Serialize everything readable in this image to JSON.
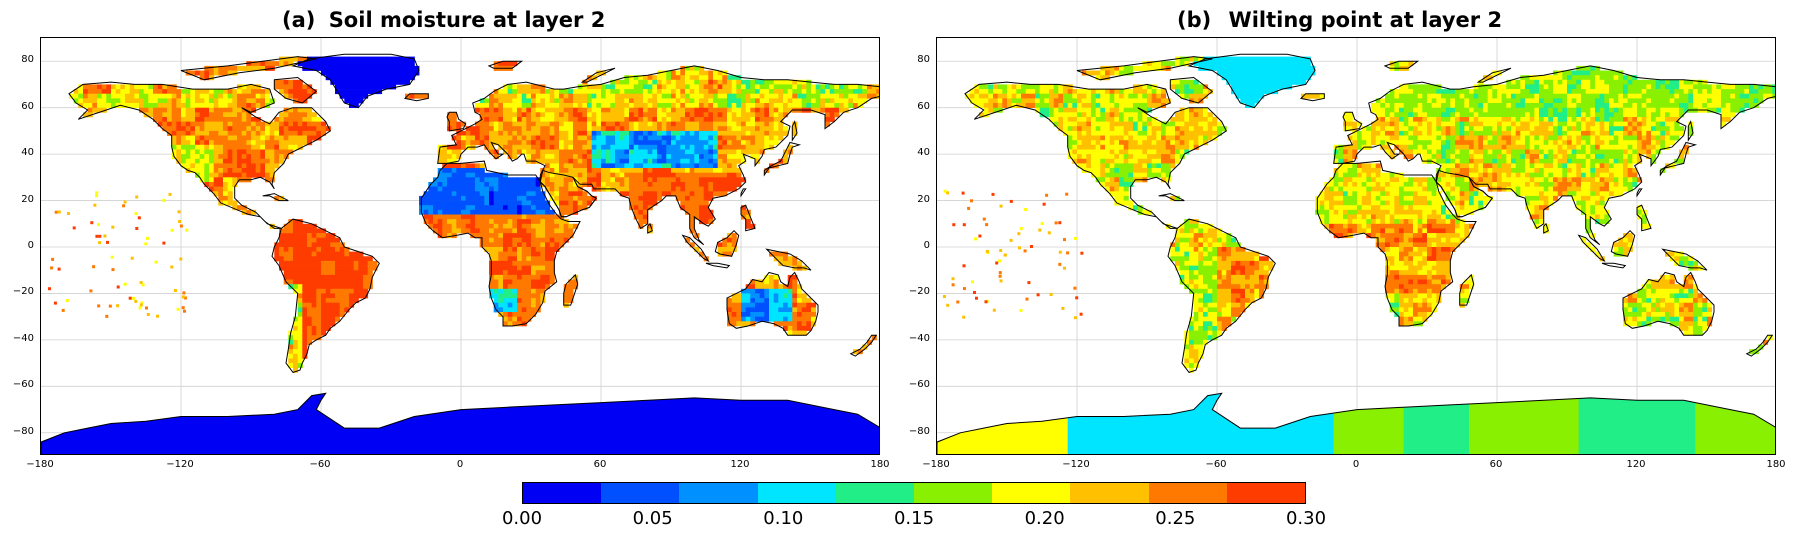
{
  "panels": [
    {
      "label": "(a)",
      "title": "Soil moisture at layer 2",
      "xticks": [
        "−180",
        "−120",
        "−60",
        "0",
        "60",
        "120",
        "180"
      ],
      "yticks": [
        "80",
        "60",
        "40",
        "20",
        "0",
        "−20",
        "−40",
        "−60",
        "−80"
      ],
      "xlim": [
        -180,
        180
      ],
      "ylim": [
        -90,
        90
      ],
      "grid": true
    },
    {
      "label": "(b)",
      "title": "Wilting point at layer 2",
      "xticks": [
        "−180",
        "−120",
        "−60",
        "0",
        "60",
        "120",
        "180"
      ],
      "yticks": [
        "80",
        "60",
        "40",
        "20",
        "0",
        "−20",
        "−40",
        "−60",
        "−80"
      ],
      "xlim": [
        -180,
        180
      ],
      "ylim": [
        -90,
        90
      ],
      "grid": true
    }
  ],
  "colorbar": {
    "ticks": [
      "0.00",
      "0.05",
      "0.10",
      "0.15",
      "0.20",
      "0.25",
      "0.30"
    ],
    "range": [
      0.0,
      0.3
    ],
    "colors": [
      "#0000f5",
      "#0050ff",
      "#0090ff",
      "#00e5ff",
      "#22ee88",
      "#88f000",
      "#ffff00",
      "#ffc000",
      "#ff7800",
      "#ff3c00"
    ]
  }
}
